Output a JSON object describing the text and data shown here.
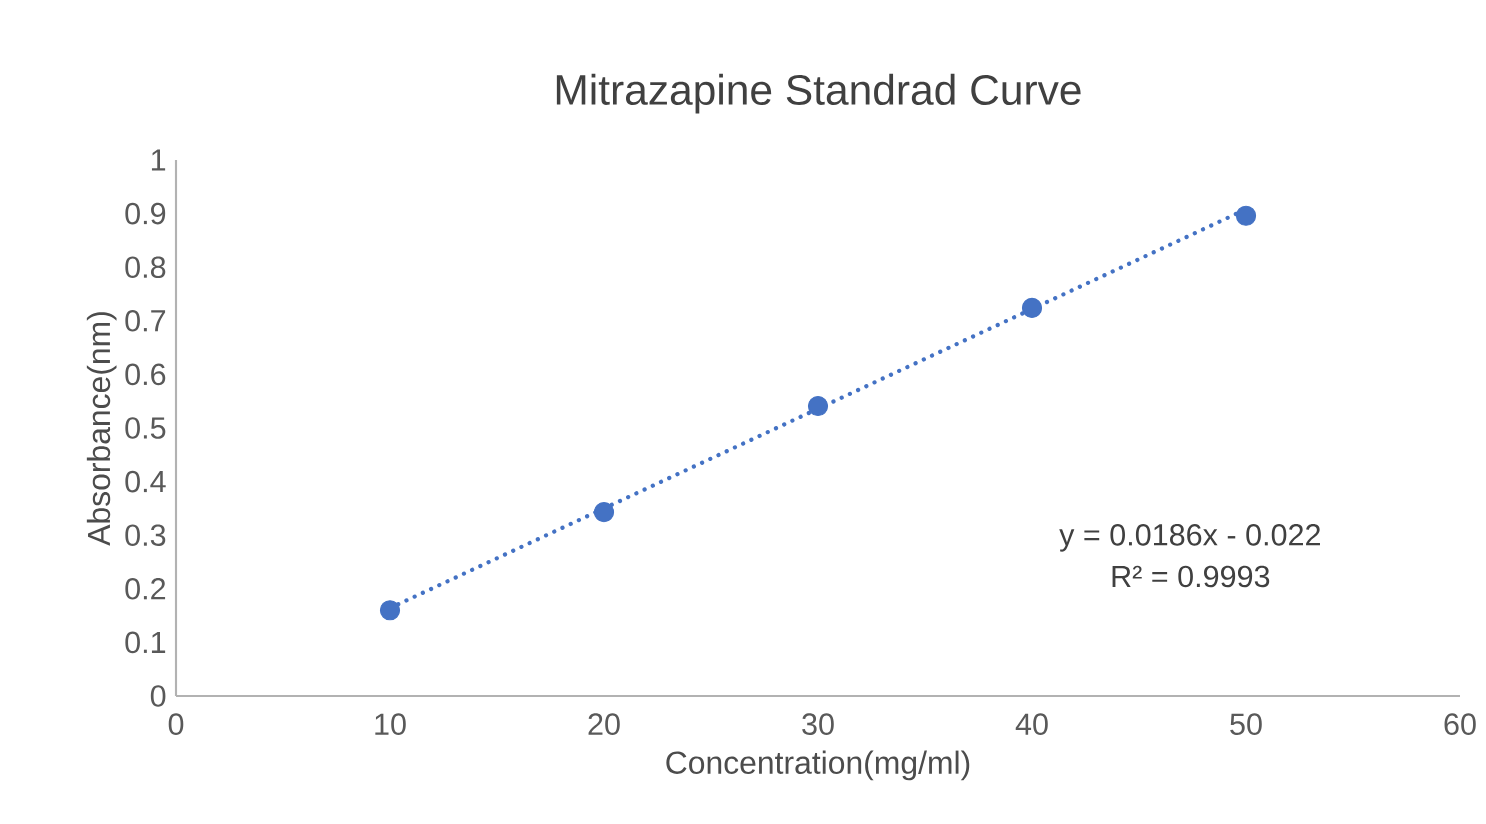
{
  "chart_data": {
    "type": "scatter",
    "title": "Mitrazapine Standrad Curve",
    "xlabel": "Concentration(mg/ml)",
    "ylabel": "Absorbance(nm)",
    "x": [
      10,
      20,
      30,
      40,
      50
    ],
    "series": [
      {
        "color": "#4472c4",
        "marker": "circle",
        "values": [
          0.16,
          0.343,
          0.541,
          0.724,
          0.896
        ]
      },
      {
        "type": "line",
        "color": "#4472c4",
        "marker": "none",
        "line_style": "dotted",
        "x": [
          10,
          50
        ],
        "values": [
          0.164,
          0.908
        ]
      }
    ],
    "annotations": [
      "y = 0.0186x - 0.022",
      "R² = 0.9993"
    ],
    "xlim": [
      0,
      60
    ],
    "xticks": [
      0,
      10,
      20,
      30,
      40,
      50,
      60
    ],
    "ylim": [
      0,
      1
    ],
    "yticks": [
      0,
      0.1,
      0.2,
      0.3,
      0.4,
      0.5,
      0.6,
      0.7,
      0.8,
      0.9,
      1
    ],
    "grid": false
  }
}
